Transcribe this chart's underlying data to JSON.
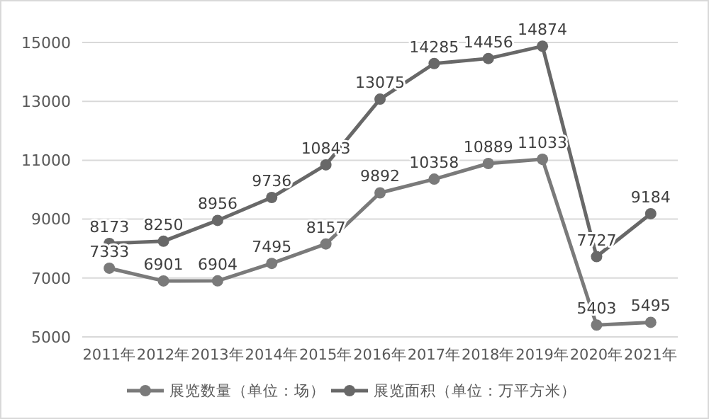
{
  "chart_data": {
    "type": "line",
    "categories": [
      "2011年",
      "2012年",
      "2013年",
      "2014年",
      "2015年",
      "2016年",
      "2017年",
      "2018年",
      "2019年",
      "2020年",
      "2021年"
    ],
    "series": [
      {
        "name": "展览数量（单位：场）",
        "color": "#7a7a7a",
        "values": [
          7333,
          6901,
          6904,
          7495,
          8157,
          9892,
          10358,
          10889,
          11033,
          5403,
          5495
        ]
      },
      {
        "name": "展览面积（单位：万平方米）",
        "color": "#686868",
        "values": [
          8173,
          8250,
          8956,
          9736,
          10843,
          13075,
          14285,
          14456,
          14874,
          7727,
          9184
        ]
      }
    ],
    "ylim": [
      5000,
      15000
    ],
    "yticks": [
      5000,
      7000,
      9000,
      11000,
      13000,
      15000
    ],
    "grid": "y",
    "legend": "bottom",
    "marker": "circle",
    "line_style": "solid",
    "data_labels": true
  }
}
